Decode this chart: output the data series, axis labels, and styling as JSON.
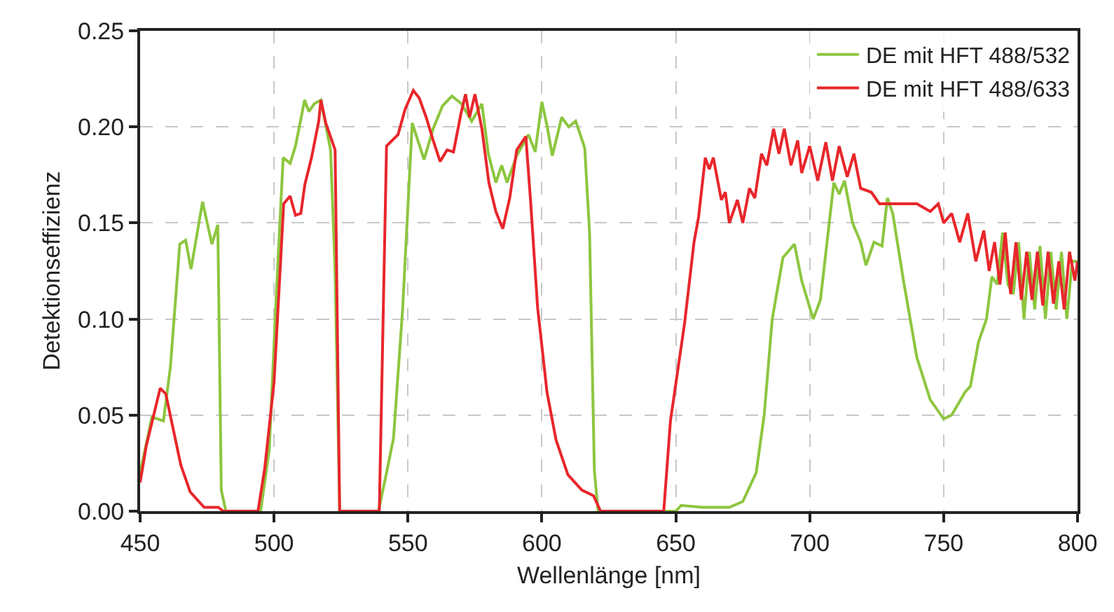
{
  "chart_data": {
    "type": "line",
    "xlabel": "Wellenlänge [nm]",
    "ylabel": "Detektionseffizienz",
    "xlim": [
      450,
      800
    ],
    "xticks": [
      450,
      500,
      550,
      600,
      650,
      700,
      750,
      800
    ],
    "ylim": [
      0,
      0.25
    ],
    "yticks": [
      {
        "value": 0,
        "label": "0.00"
      },
      {
        "value": 0.05,
        "label": "0.05"
      },
      {
        "value": 0.1,
        "label": "0.10"
      },
      {
        "value": 0.15,
        "label": "0.15"
      },
      {
        "value": 0.2,
        "label": "0.20"
      },
      {
        "value": 0.25,
        "label": "0.25"
      }
    ],
    "grid": true,
    "legend": "top right",
    "line_style": "solid",
    "marker": "none",
    "series": [
      {
        "name": "DE mit HFT 488/532",
        "color": "#8dc63f",
        "x": [
          450,
          454.4,
          458.7,
          461.3,
          464.8,
          467,
          469,
          473.3,
          476.8,
          479,
          480.3,
          482,
          495,
          498.2,
          500.8,
          503.4,
          506,
          508,
          510,
          511.4,
          513,
          515,
          517.5,
          519,
          521.1,
          522.8,
          524.5,
          539,
          542,
          544.6,
          548,
          551.6,
          556,
          559.4,
          562.9,
          566.4,
          570,
          573.8,
          577.6,
          580,
          582.8,
          585,
          587,
          590.6,
          595,
          597.5,
          600,
          602,
          603.9,
          607.4,
          610,
          612.6,
          616,
          617.8,
          619.6,
          621,
          650,
          652,
          660,
          670,
          675,
          680,
          683,
          686,
          690,
          694.3,
          697,
          701.3,
          704,
          709,
          711,
          713,
          716,
          719,
          721,
          724,
          727,
          729,
          731,
          735,
          740,
          745,
          750,
          753,
          758,
          760,
          763,
          766,
          768,
          770,
          772,
          774,
          776,
          778,
          780,
          782,
          784,
          786,
          788,
          790,
          792,
          794,
          796,
          798,
          800
        ],
        "values": [
          0.02,
          0.049,
          0.047,
          0.075,
          0.139,
          0.141,
          0.126,
          0.161,
          0.139,
          0.149,
          0.011,
          0,
          0,
          0.032,
          0.111,
          0.184,
          0.181,
          0.19,
          0.204,
          0.214,
          0.208,
          0.212,
          0.214,
          0.203,
          0.188,
          0.125,
          0,
          0,
          0.02,
          0.038,
          0.105,
          0.202,
          0.183,
          0.199,
          0.211,
          0.216,
          0.212,
          0.203,
          0.212,
          0.186,
          0.171,
          0.18,
          0.171,
          0.185,
          0.196,
          0.187,
          0.213,
          0.2,
          0.185,
          0.205,
          0.2,
          0.203,
          0.189,
          0.145,
          0.021,
          0,
          0,
          0.003,
          0.002,
          0.002,
          0.005,
          0.02,
          0.05,
          0.1,
          0.132,
          0.139,
          0.12,
          0.1,
          0.11,
          0.171,
          0.165,
          0.172,
          0.15,
          0.14,
          0.128,
          0.14,
          0.138,
          0.163,
          0.155,
          0.12,
          0.08,
          0.058,
          0.048,
          0.05,
          0.062,
          0.065,
          0.088,
          0.1,
          0.122,
          0.118,
          0.145,
          0.118,
          0.113,
          0.14,
          0.1,
          0.135,
          0.105,
          0.138,
          0.1,
          0.135,
          0.105,
          0.135,
          0.1,
          0.13,
          0.13
        ]
      },
      {
        "name": "DE mit HFT 488/633",
        "color": "#e8262b",
        "x": [
          450,
          452.3,
          457.5,
          459.6,
          461.7,
          465.2,
          468.7,
          473.9,
          479.2,
          481,
          494,
          496.5,
          500,
          503.6,
          506,
          508,
          510,
          511.5,
          514,
          516.7,
          517.5,
          519.3,
          522.8,
          524.5,
          539.3,
          542,
          546.3,
          548.9,
          552,
          554.2,
          556.8,
          559.4,
          562,
          564.6,
          567,
          569.8,
          571.5,
          573,
          575,
          577.6,
          580.2,
          582.8,
          585.4,
          588,
          590.6,
          594,
          595.8,
          598.4,
          601.9,
          605.3,
          609.7,
          614.9,
          619.3,
          621.9,
          645.5,
          648,
          653.3,
          656.8,
          658.5,
          661,
          662.5,
          664,
          667,
          668.5,
          670,
          673,
          675,
          677.5,
          679.5,
          682,
          684,
          686.5,
          688.5,
          690.5,
          693,
          695.5,
          697,
          700,
          703,
          706,
          708.5,
          711,
          714,
          716.5,
          719,
          723,
          726,
          730,
          735,
          740,
          745,
          748,
          750,
          753,
          756,
          759,
          762,
          765,
          767,
          769,
          771,
          773,
          775,
          777,
          779,
          781,
          783,
          785,
          787,
          789,
          791,
          793,
          795,
          797,
          799,
          800
        ],
        "values": [
          0.015,
          0.034,
          0.064,
          0.061,
          0.047,
          0.024,
          0.01,
          0.002,
          0.002,
          0,
          0,
          0.022,
          0.067,
          0.16,
          0.164,
          0.154,
          0.155,
          0.17,
          0.184,
          0.203,
          0.214,
          0.202,
          0.188,
          0,
          0,
          0.19,
          0.196,
          0.209,
          0.219,
          0.215,
          0.205,
          0.193,
          0.182,
          0.188,
          0.187,
          0.207,
          0.217,
          0.205,
          0.217,
          0.199,
          0.171,
          0.156,
          0.147,
          0.163,
          0.188,
          0.195,
          0.161,
          0.106,
          0.062,
          0.037,
          0.019,
          0.011,
          0.008,
          0,
          0,
          0.047,
          0.098,
          0.14,
          0.153,
          0.184,
          0.178,
          0.184,
          0.162,
          0.166,
          0.15,
          0.162,
          0.15,
          0.168,
          0.163,
          0.186,
          0.18,
          0.199,
          0.186,
          0.199,
          0.18,
          0.193,
          0.176,
          0.19,
          0.172,
          0.192,
          0.172,
          0.19,
          0.174,
          0.186,
          0.168,
          0.166,
          0.16,
          0.16,
          0.16,
          0.16,
          0.156,
          0.16,
          0.15,
          0.155,
          0.14,
          0.155,
          0.13,
          0.146,
          0.125,
          0.14,
          0.118,
          0.145,
          0.113,
          0.14,
          0.11,
          0.135,
          0.11,
          0.135,
          0.107,
          0.135,
          0.108,
          0.13,
          0.105,
          0.135,
          0.12,
          0.13
        ]
      }
    ]
  }
}
